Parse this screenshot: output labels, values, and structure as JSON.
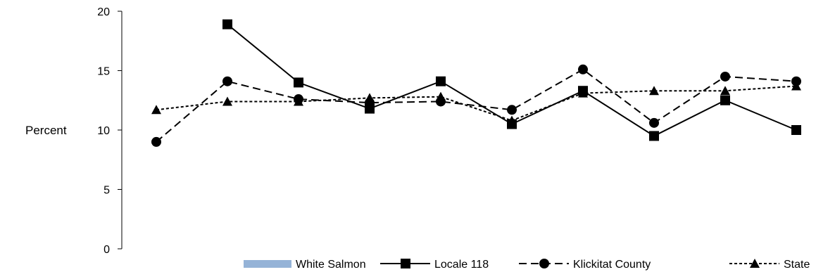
{
  "chart_data": {
    "type": "line",
    "title": "",
    "xlabel": "",
    "ylabel": "Percent",
    "ylim": [
      0,
      20
    ],
    "yticks": [
      0,
      5,
      10,
      15,
      20
    ],
    "grid": false,
    "legend_position": "bottom",
    "x_points": 10,
    "series": [
      {
        "name": "White Salmon",
        "style": "bar",
        "color": "#95B3D7",
        "values": []
      },
      {
        "name": "Locale 118",
        "style": "solid",
        "marker": "square",
        "color": "#000000",
        "values": [
          null,
          18.9,
          14.0,
          11.8,
          14.1,
          10.5,
          13.3,
          9.5,
          12.5,
          10.0
        ]
      },
      {
        "name": "Klickitat County",
        "style": "dashed",
        "marker": "circle",
        "color": "#000000",
        "values": [
          9.0,
          14.1,
          12.6,
          12.3,
          12.4,
          11.7,
          15.1,
          10.6,
          14.5,
          14.1
        ]
      },
      {
        "name": "State",
        "style": "dotted",
        "marker": "triangle",
        "color": "#000000",
        "values": [
          11.7,
          12.4,
          12.4,
          12.7,
          12.8,
          10.8,
          13.1,
          13.3,
          13.3,
          13.7
        ]
      }
    ]
  }
}
